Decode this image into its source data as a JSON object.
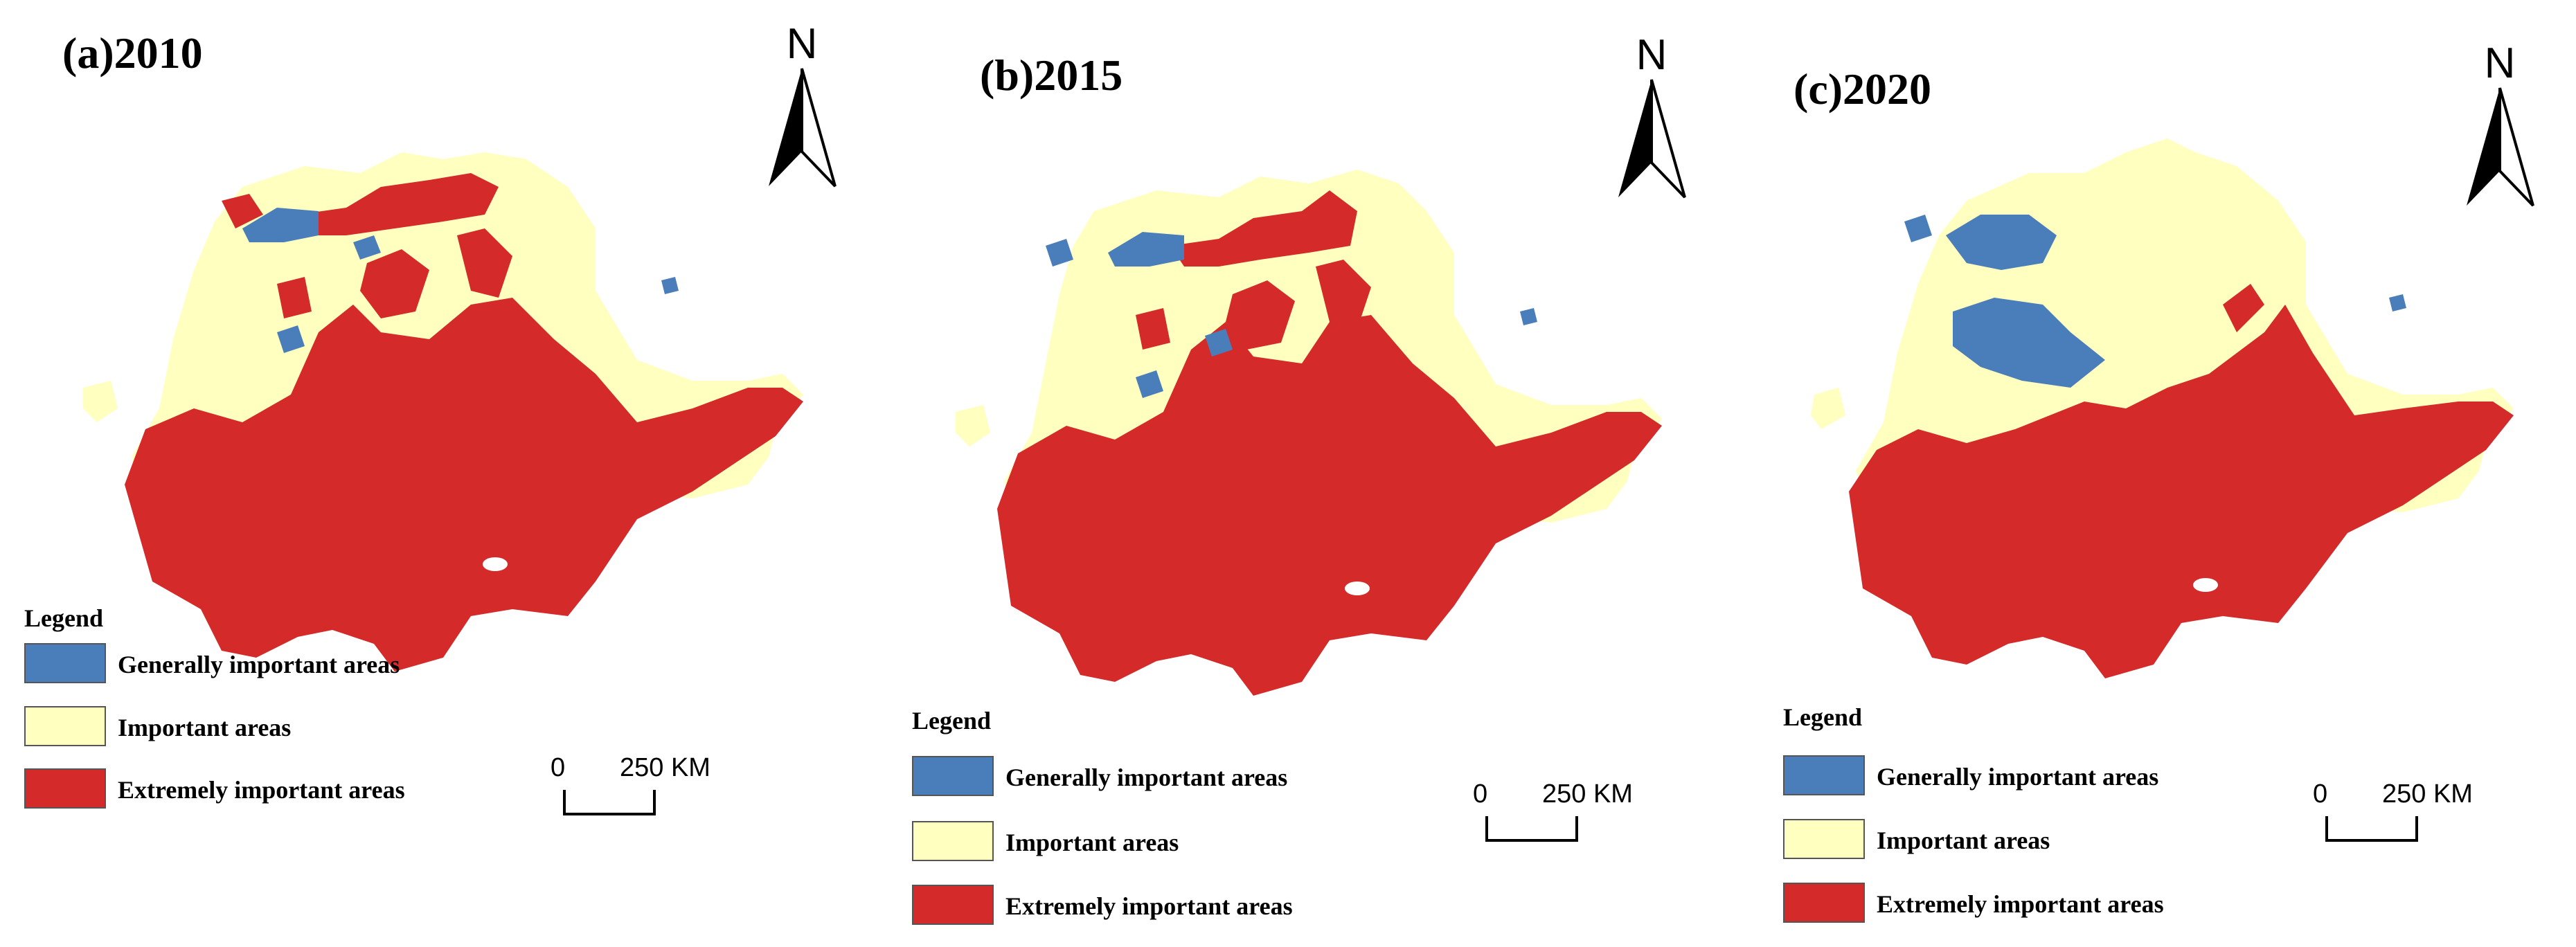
{
  "colors": {
    "generally_important": "#4a7ebb",
    "important": "#ffffc0",
    "extremely_important": "#d42a2a"
  },
  "panels": [
    {
      "title": "(a)2010",
      "north_label": "N",
      "legend": {
        "title": "Legend",
        "items": [
          {
            "label": "Generally important areas",
            "color": "#4a7ebb"
          },
          {
            "label": "Important areas",
            "color": "#ffffc0"
          },
          {
            "label": "Extremely important areas",
            "color": "#d42a2a"
          }
        ]
      },
      "scale": {
        "zero": "0",
        "distance": "250 KM"
      }
    },
    {
      "title": "(b)2015",
      "north_label": "N",
      "legend": {
        "title": "Legend",
        "items": [
          {
            "label": "Generally important areas",
            "color": "#4a7ebb"
          },
          {
            "label": "Important areas",
            "color": "#ffffc0"
          },
          {
            "label": "Extremely important areas",
            "color": "#d42a2a"
          }
        ]
      },
      "scale": {
        "zero": "0",
        "distance": "250 KM"
      }
    },
    {
      "title": "(c)2020",
      "north_label": "N",
      "legend": {
        "title": "Legend",
        "items": [
          {
            "label": "Generally important areas",
            "color": "#4a7ebb"
          },
          {
            "label": "Important areas",
            "color": "#ffffc0"
          },
          {
            "label": "Extremely important areas",
            "color": "#d42a2a"
          }
        ]
      },
      "scale": {
        "zero": "0",
        "distance": "250 KM"
      }
    }
  ]
}
